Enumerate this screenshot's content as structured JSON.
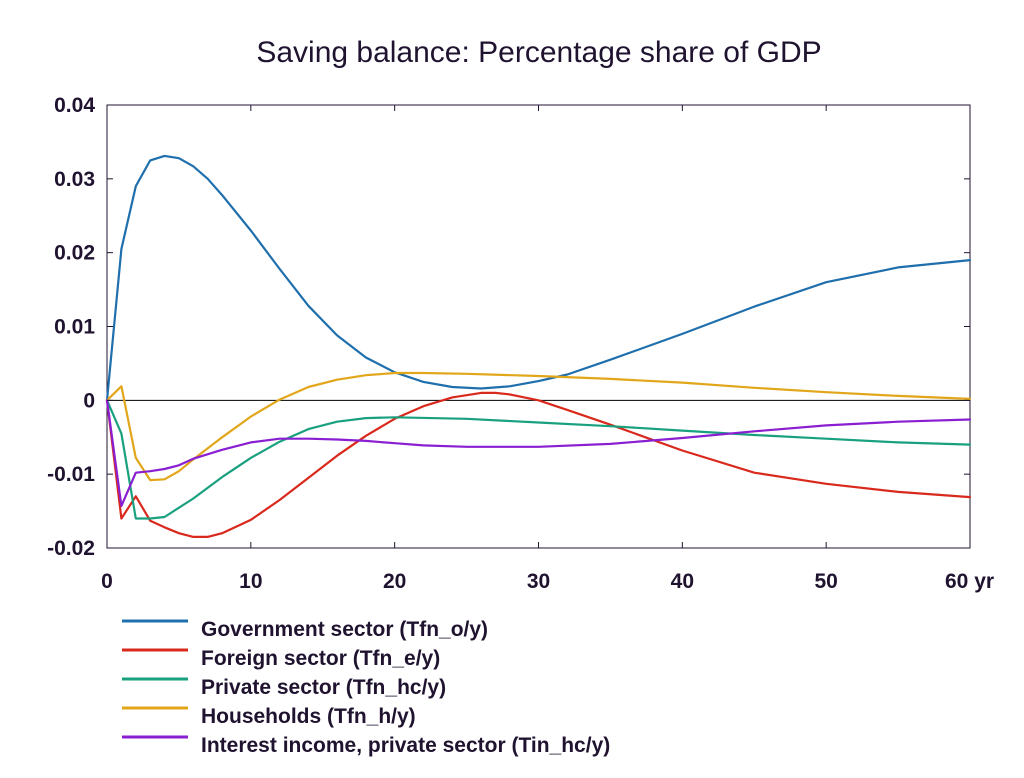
{
  "chart_data": {
    "type": "line",
    "title": "Saving balance: Percentage share of GDP",
    "xlabel": "",
    "ylabel": "",
    "x_unit": "yr",
    "xlim": [
      0,
      60
    ],
    "ylim": [
      -0.02,
      0.04
    ],
    "xticks": [
      0,
      10,
      20,
      30,
      40,
      50,
      60
    ],
    "xtick_labels": [
      "0",
      "10",
      "20",
      "30",
      "40",
      "50",
      "60 yr"
    ],
    "yticks": [
      -0.02,
      -0.01,
      0,
      0.01,
      0.02,
      0.03,
      0.04
    ],
    "ytick_labels": [
      "-0.02",
      "-0.01",
      "0",
      "0.01",
      "0.02",
      "0.03",
      "0.04"
    ],
    "grid": false,
    "legend_position": "bottom-left",
    "series": [
      {
        "name": "Government sector (Tfn_o/y)",
        "color": "#1f6fad",
        "points": [
          [
            0,
            0
          ],
          [
            1,
            0.0205
          ],
          [
            2,
            0.029
          ],
          [
            3,
            0.0325
          ],
          [
            4,
            0.0331
          ],
          [
            5,
            0.0328
          ],
          [
            6,
            0.0317
          ],
          [
            7,
            0.03
          ],
          [
            8,
            0.0278
          ],
          [
            10,
            0.023
          ],
          [
            12,
            0.0178
          ],
          [
            14,
            0.0128
          ],
          [
            16,
            0.0088
          ],
          [
            18,
            0.0058
          ],
          [
            20,
            0.0038
          ],
          [
            22,
            0.0025
          ],
          [
            24,
            0.0018
          ],
          [
            26,
            0.0016
          ],
          [
            28,
            0.0019
          ],
          [
            30,
            0.0026
          ],
          [
            32,
            0.0035
          ],
          [
            35,
            0.0055
          ],
          [
            40,
            0.009
          ],
          [
            45,
            0.0127
          ],
          [
            50,
            0.016
          ],
          [
            55,
            0.018
          ],
          [
            60,
            0.019
          ]
        ]
      },
      {
        "name": "Foreign sector (Tfn_e/y)",
        "color": "#d9291c",
        "points": [
          [
            0,
            0
          ],
          [
            1,
            -0.016
          ],
          [
            2,
            -0.013
          ],
          [
            3,
            -0.0163
          ],
          [
            4,
            -0.0172
          ],
          [
            5,
            -0.018
          ],
          [
            6,
            -0.0185
          ],
          [
            7,
            -0.0185
          ],
          [
            8,
            -0.018
          ],
          [
            10,
            -0.0162
          ],
          [
            12,
            -0.0135
          ],
          [
            14,
            -0.0105
          ],
          [
            16,
            -0.0075
          ],
          [
            18,
            -0.0048
          ],
          [
            20,
            -0.0025
          ],
          [
            22,
            -0.0008
          ],
          [
            24,
            0.0004
          ],
          [
            26,
            0.001
          ],
          [
            27,
            0.001
          ],
          [
            28,
            0.0008
          ],
          [
            30,
            0
          ],
          [
            32,
            -0.0013
          ],
          [
            35,
            -0.0033
          ],
          [
            40,
            -0.0068
          ],
          [
            45,
            -0.0098
          ],
          [
            50,
            -0.0113
          ],
          [
            55,
            -0.0124
          ],
          [
            60,
            -0.0131
          ]
        ]
      },
      {
        "name": "Private sector (Tfn_hc/y)",
        "color": "#19a07e",
        "points": [
          [
            0,
            0
          ],
          [
            1,
            -0.0045
          ],
          [
            2,
            -0.016
          ],
          [
            3,
            -0.016
          ],
          [
            4,
            -0.0158
          ],
          [
            6,
            -0.0133
          ],
          [
            8,
            -0.0104
          ],
          [
            10,
            -0.0078
          ],
          [
            12,
            -0.0056
          ],
          [
            14,
            -0.0039
          ],
          [
            16,
            -0.0029
          ],
          [
            18,
            -0.0024
          ],
          [
            20,
            -0.0023
          ],
          [
            25,
            -0.0025
          ],
          [
            30,
            -0.003
          ],
          [
            35,
            -0.0035
          ],
          [
            40,
            -0.0041
          ],
          [
            45,
            -0.0047
          ],
          [
            50,
            -0.0052
          ],
          [
            55,
            -0.0057
          ],
          [
            60,
            -0.006
          ]
        ]
      },
      {
        "name": "Households (Tfn_h/y)",
        "color": "#e2a61a",
        "points": [
          [
            0,
            0
          ],
          [
            1,
            0.0019
          ],
          [
            2,
            -0.0078
          ],
          [
            3,
            -0.0108
          ],
          [
            4,
            -0.0107
          ],
          [
            5,
            -0.0096
          ],
          [
            6,
            -0.008
          ],
          [
            8,
            -0.005
          ],
          [
            10,
            -0.0022
          ],
          [
            12,
            0.0001
          ],
          [
            14,
            0.0018
          ],
          [
            16,
            0.0028
          ],
          [
            18,
            0.0034
          ],
          [
            20,
            0.0037
          ],
          [
            22,
            0.0037
          ],
          [
            25,
            0.0036
          ],
          [
            30,
            0.0033
          ],
          [
            35,
            0.0029
          ],
          [
            40,
            0.0024
          ],
          [
            45,
            0.0017
          ],
          [
            50,
            0.0011
          ],
          [
            55,
            0.0006
          ],
          [
            60,
            0.0002
          ]
        ]
      },
      {
        "name": "Interest income, private sector (Tin_hc/y)",
        "color": "#8a1fd2",
        "points": [
          [
            0,
            0
          ],
          [
            1,
            -0.0143
          ],
          [
            2,
            -0.0098
          ],
          [
            3,
            -0.0096
          ],
          [
            4,
            -0.0093
          ],
          [
            5,
            -0.0088
          ],
          [
            6,
            -0.0079
          ],
          [
            8,
            -0.0067
          ],
          [
            10,
            -0.0057
          ],
          [
            12,
            -0.0052
          ],
          [
            14,
            -0.0052
          ],
          [
            16,
            -0.0053
          ],
          [
            18,
            -0.0055
          ],
          [
            20,
            -0.0058
          ],
          [
            22,
            -0.0061
          ],
          [
            25,
            -0.0063
          ],
          [
            30,
            -0.0063
          ],
          [
            35,
            -0.0059
          ],
          [
            40,
            -0.0051
          ],
          [
            45,
            -0.0042
          ],
          [
            50,
            -0.0034
          ],
          [
            55,
            -0.0029
          ],
          [
            60,
            -0.0026
          ]
        ]
      }
    ]
  }
}
